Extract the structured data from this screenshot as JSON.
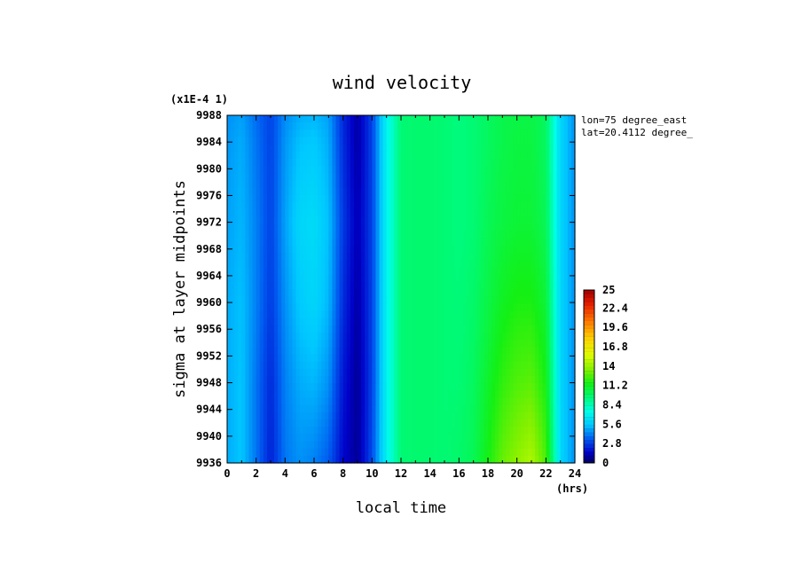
{
  "chart_data": {
    "type": "heatmap",
    "title": "wind velocity",
    "xlabel": "local time",
    "ylabel": "sigma at layer midpoints",
    "x_unit": "(hrs)",
    "y_scale_note": "(x1E-4 1)",
    "annotations": [
      "lon=75 degree_east",
      "lat=20.4112 degree_"
    ],
    "xlim": [
      0,
      24
    ],
    "ylim": [
      9988,
      9936
    ],
    "x_ticks": [
      "0",
      "2",
      "4",
      "6",
      "8",
      "10",
      "12",
      "14",
      "16",
      "18",
      "20",
      "22",
      "24"
    ],
    "y_ticks": [
      "9936",
      "9940",
      "9944",
      "9948",
      "9952",
      "9956",
      "9960",
      "9964",
      "9968",
      "9972",
      "9976",
      "9980",
      "9984",
      "9988"
    ],
    "x": [
      0,
      1,
      2,
      3,
      4,
      5,
      6,
      7,
      8,
      9,
      10,
      11,
      12,
      13,
      14,
      15,
      16,
      17,
      18,
      19,
      20,
      21,
      22,
      23,
      24
    ],
    "y": [
      9936,
      9948,
      9960,
      9972,
      9984,
      9988
    ],
    "z": [
      [
        5.0,
        5.5,
        4.0,
        2.2,
        4.0,
        4.5,
        4.2,
        3.5,
        1.6,
        0.8,
        3.2,
        7.0,
        9.6,
        9.7,
        9.7,
        9.6,
        9.8,
        10.2,
        11.5,
        13.0,
        13.8,
        14.5,
        12.5,
        6.0,
        4.5
      ],
      [
        5.0,
        5.5,
        4.0,
        2.4,
        4.2,
        5.0,
        5.2,
        4.5,
        2.0,
        0.8,
        3.0,
        7.0,
        9.6,
        9.7,
        9.7,
        9.6,
        9.6,
        10.0,
        11.0,
        12.0,
        12.6,
        12.8,
        11.5,
        6.0,
        4.5
      ],
      [
        5.0,
        5.4,
        4.2,
        2.8,
        4.5,
        5.6,
        6.0,
        5.2,
        2.5,
        1.0,
        3.0,
        7.0,
        9.6,
        9.7,
        9.7,
        9.6,
        9.5,
        9.8,
        10.5,
        11.2,
        11.6,
        11.6,
        10.8,
        6.0,
        4.5
      ],
      [
        4.8,
        5.2,
        4.2,
        3.0,
        4.8,
        6.0,
        6.2,
        5.4,
        2.8,
        1.2,
        3.0,
        7.0,
        9.6,
        9.7,
        9.7,
        9.6,
        9.4,
        9.6,
        10.2,
        10.6,
        10.8,
        10.8,
        10.2,
        6.0,
        4.5
      ],
      [
        4.6,
        5.0,
        4.0,
        3.0,
        4.6,
        5.4,
        5.6,
        5.0,
        2.5,
        1.0,
        3.0,
        7.0,
        9.6,
        9.7,
        9.7,
        9.6,
        9.4,
        9.6,
        10.0,
        10.4,
        10.6,
        10.6,
        10.0,
        6.0,
        4.5
      ],
      [
        4.5,
        4.8,
        3.8,
        3.0,
        4.4,
        5.0,
        5.2,
        4.8,
        2.4,
        1.0,
        3.0,
        7.0,
        9.6,
        9.7,
        9.7,
        9.6,
        9.4,
        9.6,
        10.0,
        10.4,
        10.5,
        10.5,
        10.0,
        6.0,
        4.5
      ]
    ],
    "colorbar": {
      "range": [
        0,
        25
      ],
      "tick_labels": [
        "0",
        "2.8",
        "5.6",
        "8.4",
        "11.2",
        "14",
        "16.8",
        "19.6",
        "22.4",
        "25"
      ]
    },
    "grid": false,
    "legend": "colorbar right"
  }
}
